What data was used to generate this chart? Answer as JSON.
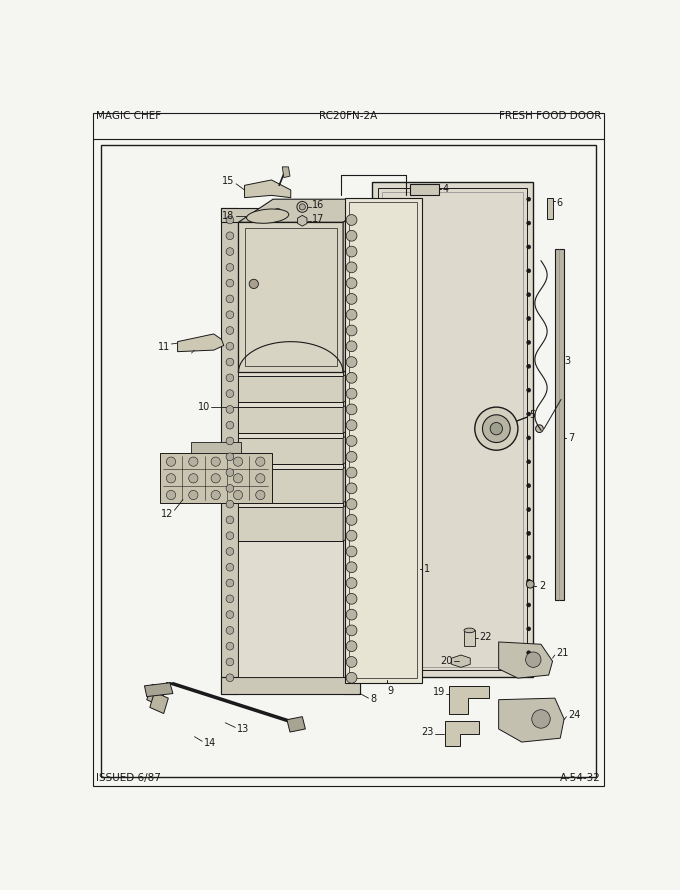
{
  "title_left": "MAGIC CHEF",
  "title_center": "RC20FN-2A",
  "title_right": "FRESH FOOD DOOR",
  "footer_left": "ISSUED 6/87",
  "footer_right": "A-54-32",
  "bg_color": "#f5f5f2",
  "line_color": "#1a1a1a",
  "figsize": [
    6.8,
    8.9
  ],
  "dpi": 100
}
